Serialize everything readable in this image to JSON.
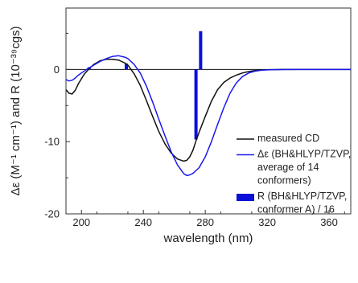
{
  "chart_data": {
    "type": "line",
    "xlabel": "wavelength (nm)",
    "ylabel": "Δε (M⁻¹ cm⁻¹) and R (10⁻³⁹cgs)",
    "xlim": [
      190,
      374
    ],
    "ylim": [
      -20,
      8.5
    ],
    "x_ticks": [
      "200",
      "240",
      "280",
      "320",
      "360"
    ],
    "x_tick_values": [
      200,
      240,
      280,
      320,
      360
    ],
    "y_ticks": [
      "0",
      "-10",
      "-20"
    ],
    "y_tick_values": [
      0,
      -10,
      -20
    ],
    "legend_position": "lower-right",
    "series": [
      {
        "name": "measured CD",
        "kind": "line",
        "color": "#111111",
        "x": [
          190,
          192,
          194,
          196,
          198,
          200,
          202,
          205,
          208,
          212,
          216,
          220,
          224,
          226,
          228,
          230,
          234,
          238,
          242,
          246,
          250,
          254,
          258,
          262,
          266,
          268,
          270,
          272,
          274,
          276,
          278,
          280,
          284,
          288,
          292,
          296,
          300,
          304,
          308,
          312,
          316,
          320,
          330,
          340,
          374
        ],
        "y": [
          -2.8,
          -3.3,
          -3.4,
          -2.9,
          -2.0,
          -1.3,
          -0.6,
          0.1,
          0.7,
          1.2,
          1.4,
          1.4,
          1.3,
          1.1,
          0.9,
          0.6,
          -0.6,
          -2.2,
          -4.3,
          -6.5,
          -8.6,
          -10.3,
          -11.6,
          -12.4,
          -12.7,
          -12.6,
          -12.1,
          -11.2,
          -9.9,
          -8.7,
          -7.6,
          -6.5,
          -4.4,
          -2.8,
          -1.8,
          -1.2,
          -0.8,
          -0.5,
          -0.3,
          -0.15,
          -0.08,
          -0.04,
          0,
          0,
          0
        ]
      },
      {
        "name": "Δε (BH&HLYP/TZVP, average of 14 conformers)",
        "legend_lines": [
          "Δε (BH&HLYP/TZVP,",
          "average of 14",
          "conformers)"
        ],
        "kind": "line",
        "color": "#1a1aee",
        "x": [
          190,
          192,
          194,
          196,
          198,
          200,
          204,
          208,
          212,
          216,
          220,
          224,
          228,
          230,
          234,
          238,
          242,
          246,
          250,
          254,
          258,
          262,
          266,
          268,
          270,
          272,
          276,
          280,
          284,
          288,
          292,
          296,
          300,
          304,
          308,
          312,
          316,
          320,
          330,
          340,
          374
        ],
        "y": [
          -1.4,
          -1.6,
          -1.5,
          -1.2,
          -0.8,
          -0.5,
          0.1,
          0.6,
          1.1,
          1.5,
          1.8,
          1.9,
          1.7,
          1.5,
          0.7,
          -0.5,
          -2.3,
          -4.5,
          -6.9,
          -9.2,
          -11.4,
          -13.2,
          -14.4,
          -14.7,
          -14.6,
          -14.4,
          -13.6,
          -12.1,
          -10.0,
          -7.6,
          -5.3,
          -3.3,
          -1.9,
          -1.0,
          -0.5,
          -0.25,
          -0.12,
          -0.06,
          -0.02,
          0,
          0
        ]
      },
      {
        "name": "R (BH&HLYP/TZVP, conformer A) / 16",
        "legend_lines": [
          "R (BH&HLYP/TZVP,",
          "conformer A) / 16"
        ],
        "kind": "stick",
        "color": "#0b10d8",
        "x": [
          205,
          229,
          274,
          277
        ],
        "y": [
          0.3,
          0.8,
          -9.7,
          5.3
        ]
      }
    ]
  }
}
